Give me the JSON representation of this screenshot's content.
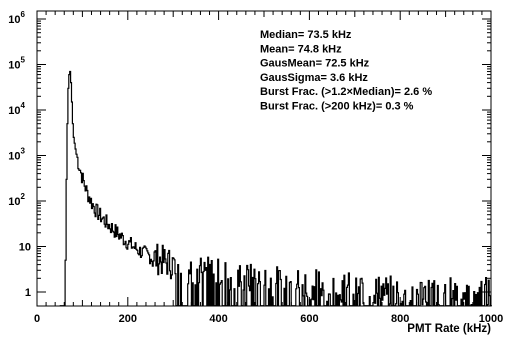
{
  "chart_data": {
    "type": "line",
    "title": "",
    "xlabel": "PMT Rate (kHz)",
    "ylabel": "",
    "xlim": [
      0,
      1000
    ],
    "ylim": [
      0.5,
      1000000
    ],
    "y_scale": "log",
    "grid": false,
    "legend": "none",
    "line_color": "#000000",
    "x_ticks": [
      "0",
      "200",
      "400",
      "600",
      "800",
      "1000"
    ],
    "y_ticks": [
      {
        "value": 1,
        "label": "1"
      },
      {
        "value": 10,
        "label": "10"
      },
      {
        "value": 100,
        "label": "10",
        "exp": "2"
      },
      {
        "value": 1000,
        "label": "10",
        "exp": "3"
      },
      {
        "value": 10000,
        "label": "10",
        "exp": "4"
      },
      {
        "value": 100000,
        "label": "10",
        "exp": "5"
      },
      {
        "value": 1000000,
        "label": "10",
        "exp": "6"
      }
    ],
    "series": [
      {
        "x": [
          50,
          60,
          62,
          64,
          66,
          68,
          70,
          72,
          74,
          76,
          78,
          80,
          85,
          90,
          95,
          100,
          110,
          120,
          130,
          140,
          150,
          175,
          200,
          225,
          250,
          300,
          350,
          400,
          450,
          500,
          600,
          700,
          800,
          900,
          1000
        ],
        "y": [
          0.5,
          0.5,
          5,
          300,
          5000,
          30000,
          60000,
          70000,
          40000,
          15000,
          5000,
          2500,
          1200,
          700,
          450,
          300,
          150,
          90,
          60,
          45,
          35,
          20,
          12,
          8,
          6,
          4,
          3,
          2.5,
          2,
          1.8,
          1.5,
          1.2,
          1,
          1,
          1
        ]
      }
    ],
    "annotations": [
      {
        "label": "Median=",
        "value": "73.5 kHz"
      },
      {
        "label": "Mean=",
        "value": "74.8 kHz"
      },
      {
        "label": "GausMean=",
        "value": "72.5 kHz"
      },
      {
        "label": "GausSigma=",
        "value": "3.6 kHz"
      },
      {
        "label": "Burst Frac. (>1.2×Median)=",
        "value": "2.6 %"
      },
      {
        "label": "Burst Frac. (>200 kHz)=",
        "value": "0.3 %"
      }
    ]
  }
}
